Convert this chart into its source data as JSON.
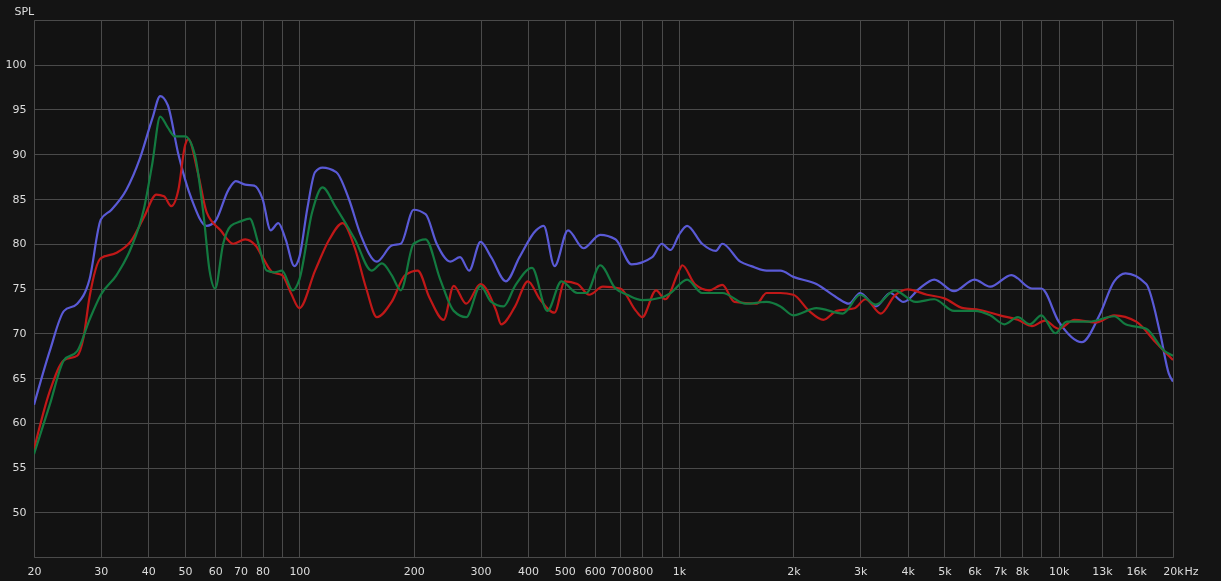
{
  "chart_data": {
    "type": "line",
    "ylabel": "SPL",
    "log": "x",
    "grid": true,
    "legend": false,
    "line_style": "solid",
    "xlim": [
      20,
      20000
    ],
    "ylim": [
      45,
      105
    ],
    "xticks": [
      20,
      30,
      40,
      50,
      60,
      70,
      80,
      {
        "value": 90,
        "label": null
      },
      100,
      200,
      300,
      400,
      500,
      600,
      700,
      800,
      {
        "value": 900,
        "label": null
      },
      {
        "value": 1000,
        "label": "1k"
      },
      {
        "value": 2000,
        "label": "2k"
      },
      {
        "value": 3000,
        "label": "3k"
      },
      {
        "value": 4000,
        "label": "4k"
      },
      {
        "value": 5000,
        "label": "5k"
      },
      {
        "value": 6000,
        "label": "6k"
      },
      {
        "value": 7000,
        "label": "7k"
      },
      {
        "value": 8000,
        "label": "8k"
      },
      {
        "value": 9000,
        "label": null
      },
      {
        "value": 10000,
        "label": "10k"
      },
      {
        "value": 13000,
        "label": "13k"
      },
      {
        "value": 16000,
        "label": "16k"
      },
      {
        "value": 20000,
        "label": "20k"
      }
    ],
    "xlabel": "Hz",
    "yticks": [
      50,
      55,
      60,
      65,
      70,
      75,
      80,
      85,
      90,
      95,
      100
    ],
    "series": [
      {
        "color": "#5a5ad6",
        "x": [
          20,
          22,
          24,
          26,
          28,
          30,
          32,
          35,
          38,
          41,
          43,
          45,
          48,
          52,
          57,
          60,
          65,
          68,
          72,
          76,
          80,
          84,
          88,
          92,
          97,
          100,
          105,
          110,
          115,
          125,
          135,
          145,
          160,
          175,
          185,
          200,
          215,
          230,
          250,
          265,
          280,
          300,
          320,
          350,
          380,
          420,
          440,
          470,
          510,
          560,
          620,
          680,
          750,
          850,
          900,
          950,
          1000,
          1050,
          1150,
          1250,
          1300,
          1450,
          1550,
          1700,
          1850,
          2000,
          2300,
          2600,
          2800,
          3000,
          3300,
          3600,
          3900,
          4300,
          4700,
          5300,
          6000,
          6600,
          7500,
          8500,
          9000,
          10000,
          11500,
          12800,
          14000,
          15000,
          17000,
          18500,
          19500,
          20000
        ],
        "values": [
          62,
          68,
          72.5,
          73.3,
          76,
          82.7,
          83.8,
          86,
          89.5,
          94,
          96.5,
          95.5,
          90,
          85,
          82,
          82.5,
          86,
          87,
          86.6,
          86.5,
          85,
          81.5,
          82.3,
          80.5,
          77.5,
          78.5,
          84,
          88,
          88.5,
          88,
          85,
          81,
          78,
          79.8,
          80,
          83.8,
          83.3,
          80,
          78,
          78.5,
          77,
          80.2,
          78.5,
          75.8,
          78.5,
          81.5,
          82,
          77.5,
          81.5,
          79.5,
          81,
          80.5,
          77.7,
          78.5,
          80,
          79.3,
          81,
          82,
          80,
          79.2,
          80,
          78,
          77.5,
          77,
          77,
          76.3,
          75.5,
          74,
          73.3,
          74.5,
          73,
          74.5,
          73.5,
          75,
          76,
          74.7,
          76,
          75.2,
          76.5,
          75,
          75,
          71.3,
          69,
          72,
          75.8,
          76.7,
          75.5,
          70,
          65.5,
          64.6
        ]
      },
      {
        "color": "#c01818",
        "x": [
          20,
          22,
          24,
          26,
          27,
          28,
          30,
          33,
          36,
          39,
          42,
          44,
          46,
          48,
          50,
          51,
          54,
          57,
          62,
          67,
          72,
          77,
          80,
          85,
          90,
          95,
          100,
          110,
          120,
          130,
          140,
          150,
          160,
          175,
          190,
          205,
          220,
          240,
          255,
          275,
          300,
          330,
          340,
          370,
          400,
          430,
          470,
          500,
          540,
          580,
          630,
          700,
          770,
          800,
          870,
          920,
          1000,
          1020,
          1100,
          1200,
          1300,
          1400,
          1600,
          1700,
          1850,
          2000,
          2200,
          2400,
          2600,
          2900,
          3100,
          3400,
          3700,
          4000,
          4500,
          5000,
          5600,
          6200,
          7000,
          7800,
          8500,
          9200,
          10000,
          11000,
          12500,
          14000,
          16000,
          18000,
          20000
        ],
        "values": [
          57,
          63.5,
          67,
          67.5,
          69.5,
          74,
          78.4,
          79,
          80.3,
          83,
          85.5,
          85.3,
          84.2,
          86,
          91,
          91.7,
          88,
          83.5,
          81.5,
          80,
          80.5,
          79.7,
          78.5,
          76.8,
          76.5,
          74.5,
          72.8,
          77,
          80.5,
          82.3,
          79.5,
          75,
          71.8,
          73.5,
          76.5,
          77,
          74,
          71.5,
          75.3,
          73.3,
          75.5,
          72.5,
          71,
          73,
          75.8,
          73.8,
          72.3,
          75.8,
          75.5,
          74.3,
          75.2,
          75,
          72.5,
          71.8,
          74.8,
          73.8,
          77,
          77.6,
          75.5,
          74.8,
          75.4,
          73.5,
          73.3,
          74.5,
          74.5,
          74.3,
          72.5,
          71.5,
          72.5,
          72.8,
          73.8,
          72.2,
          74.2,
          74.9,
          74.3,
          73.9,
          72.8,
          72.6,
          72,
          71.5,
          70.8,
          71.4,
          70.5,
          71.5,
          71.2,
          72,
          71.3,
          69,
          67
        ]
      },
      {
        "color": "#137a40",
        "x": [
          20,
          22,
          24,
          26,
          28,
          30,
          33,
          36,
          39,
          41,
          43,
          45,
          47,
          50,
          53,
          56,
          58,
          60,
          63,
          66,
          70,
          74,
          78,
          82,
          86,
          90,
          96,
          100,
          108,
          115,
          125,
          140,
          155,
          165,
          175,
          185,
          200,
          215,
          235,
          255,
          275,
          300,
          320,
          345,
          370,
          410,
          450,
          490,
          540,
          570,
          620,
          680,
          730,
          800,
          900,
          950,
          1050,
          1150,
          1300,
          1500,
          1700,
          1850,
          2000,
          2300,
          2700,
          3000,
          3300,
          3700,
          4200,
          4700,
          5300,
          6000,
          6600,
          7200,
          7800,
          8400,
          9000,
          9800,
          10500,
          12000,
          14000,
          15000,
          17000,
          19000,
          20000
        ],
        "values": [
          56.5,
          62,
          67,
          68,
          71.5,
          74.3,
          76.5,
          79.5,
          84,
          89,
          94.2,
          93,
          92,
          92,
          90,
          83,
          77,
          75,
          80,
          82,
          82.5,
          82.8,
          80,
          77,
          76.8,
          77,
          74.8,
          76,
          83.5,
          86.3,
          84,
          80.5,
          77,
          77.8,
          76.5,
          74.8,
          80,
          80.5,
          76,
          72.5,
          71.8,
          75.3,
          73.5,
          73,
          75.3,
          77.3,
          72.5,
          75.8,
          74.5,
          74.5,
          77.6,
          75,
          74.3,
          73.7,
          74,
          74.5,
          76,
          74.5,
          74.5,
          73.3,
          73.5,
          73,
          72,
          72.8,
          72.2,
          74.3,
          73.2,
          74.8,
          73.5,
          73.8,
          72.5,
          72.5,
          72,
          71,
          71.8,
          71,
          72,
          70,
          71.3,
          71.3,
          71.9,
          71,
          70.5,
          68,
          67.5
        ]
      }
    ]
  }
}
